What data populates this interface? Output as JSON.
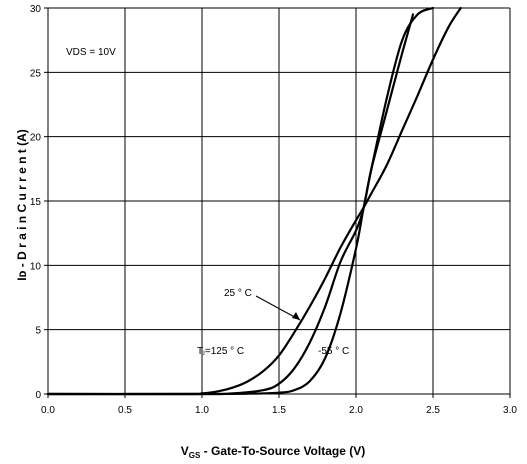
{
  "chart_data": {
    "type": "line",
    "xlabel_prefix": "V",
    "xlabel_sub": "GS",
    "xlabel_rest": " - Gate-To-Source Voltage (V)",
    "ylabel": "Iᴅ - D r a i n  C u r r e n t  (A)",
    "xlim": [
      0,
      3
    ],
    "ylim": [
      0,
      30
    ],
    "xticks": [
      "0.0",
      "0.5",
      "1.0",
      "1.5",
      "2.0",
      "2.5",
      "3.0"
    ],
    "yticks": [
      "0",
      "5",
      "10",
      "15",
      "20",
      "25",
      "30"
    ],
    "grid": true,
    "condition": "VDS = 10V",
    "series": [
      {
        "name": "-55 ° C",
        "x": [
          0.0,
          1.0,
          1.3,
          1.5,
          1.6,
          1.7,
          1.8,
          1.9,
          2.0,
          2.05,
          2.1,
          2.2,
          2.3,
          2.4,
          2.5
        ],
        "y": [
          0.0,
          0.0,
          0.02,
          0.1,
          0.3,
          1.0,
          2.8,
          6.3,
          11.3,
          14.5,
          17.5,
          23.0,
          27.5,
          29.5,
          30.0
        ]
      },
      {
        "name": "25 ° C",
        "x": [
          0.0,
          1.0,
          1.2,
          1.4,
          1.5,
          1.6,
          1.7,
          1.8,
          1.9,
          2.0,
          2.05,
          2.1,
          2.2,
          2.3,
          2.37
        ],
        "y": [
          0.0,
          0.0,
          0.05,
          0.3,
          0.8,
          2.0,
          4.0,
          6.8,
          10.3,
          12.7,
          14.5,
          17.5,
          22.0,
          26.5,
          29.5
        ]
      },
      {
        "name": "Tⱼ=125 ° C",
        "x": [
          0.0,
          0.9,
          1.0,
          1.1,
          1.2,
          1.3,
          1.4,
          1.5,
          1.6,
          1.7,
          1.8,
          1.9,
          2.0,
          2.05,
          2.1,
          2.2,
          2.3,
          2.4,
          2.5,
          2.6,
          2.68
        ],
        "y": [
          0.0,
          0.0,
          0.05,
          0.2,
          0.5,
          1.0,
          1.8,
          3.0,
          4.8,
          6.8,
          9.0,
          11.4,
          13.5,
          14.5,
          15.6,
          17.8,
          20.5,
          23.2,
          26.0,
          28.5,
          30.0
        ]
      }
    ]
  }
}
